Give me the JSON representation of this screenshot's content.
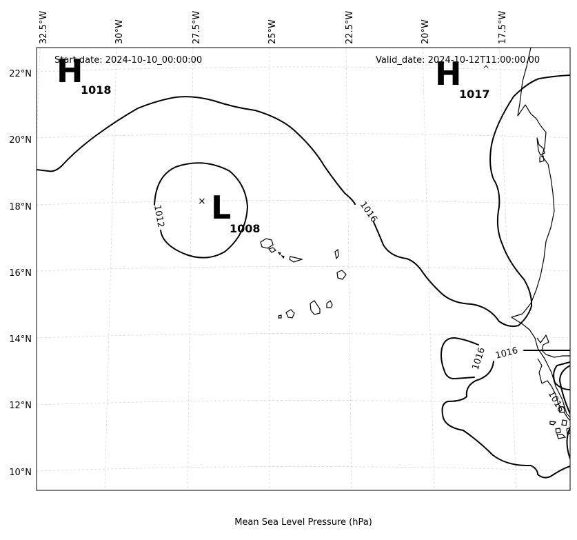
{
  "header": {
    "start_date": "Start date: 2024-10-10_00:00:00",
    "valid_date": "Valid_date: 2024-10-12T11:00:00.00"
  },
  "footer": {
    "caption": "Mean Sea Level Pressure (hPa)"
  },
  "axes": {
    "lon_labels": [
      "32.5°W",
      "30°W",
      "27.5°W",
      "25°W",
      "22.5°W",
      "20°W",
      "17.5°W"
    ],
    "lat_labels": [
      "22°N",
      "20°N",
      "18°N",
      "16°N",
      "14°N",
      "12°N",
      "10°N"
    ]
  },
  "pressure_systems": [
    {
      "type": "H",
      "value": "1018"
    },
    {
      "type": "H",
      "value": "1017"
    },
    {
      "type": "L",
      "value": "1008"
    }
  ],
  "contour_labels": [
    "1012",
    "1016",
    "1016",
    "1016",
    "1016"
  ],
  "low_center_marker": "×",
  "colors": {
    "isobar": "#000000",
    "grid": "#d4d4d4",
    "background": "#ffffff"
  }
}
